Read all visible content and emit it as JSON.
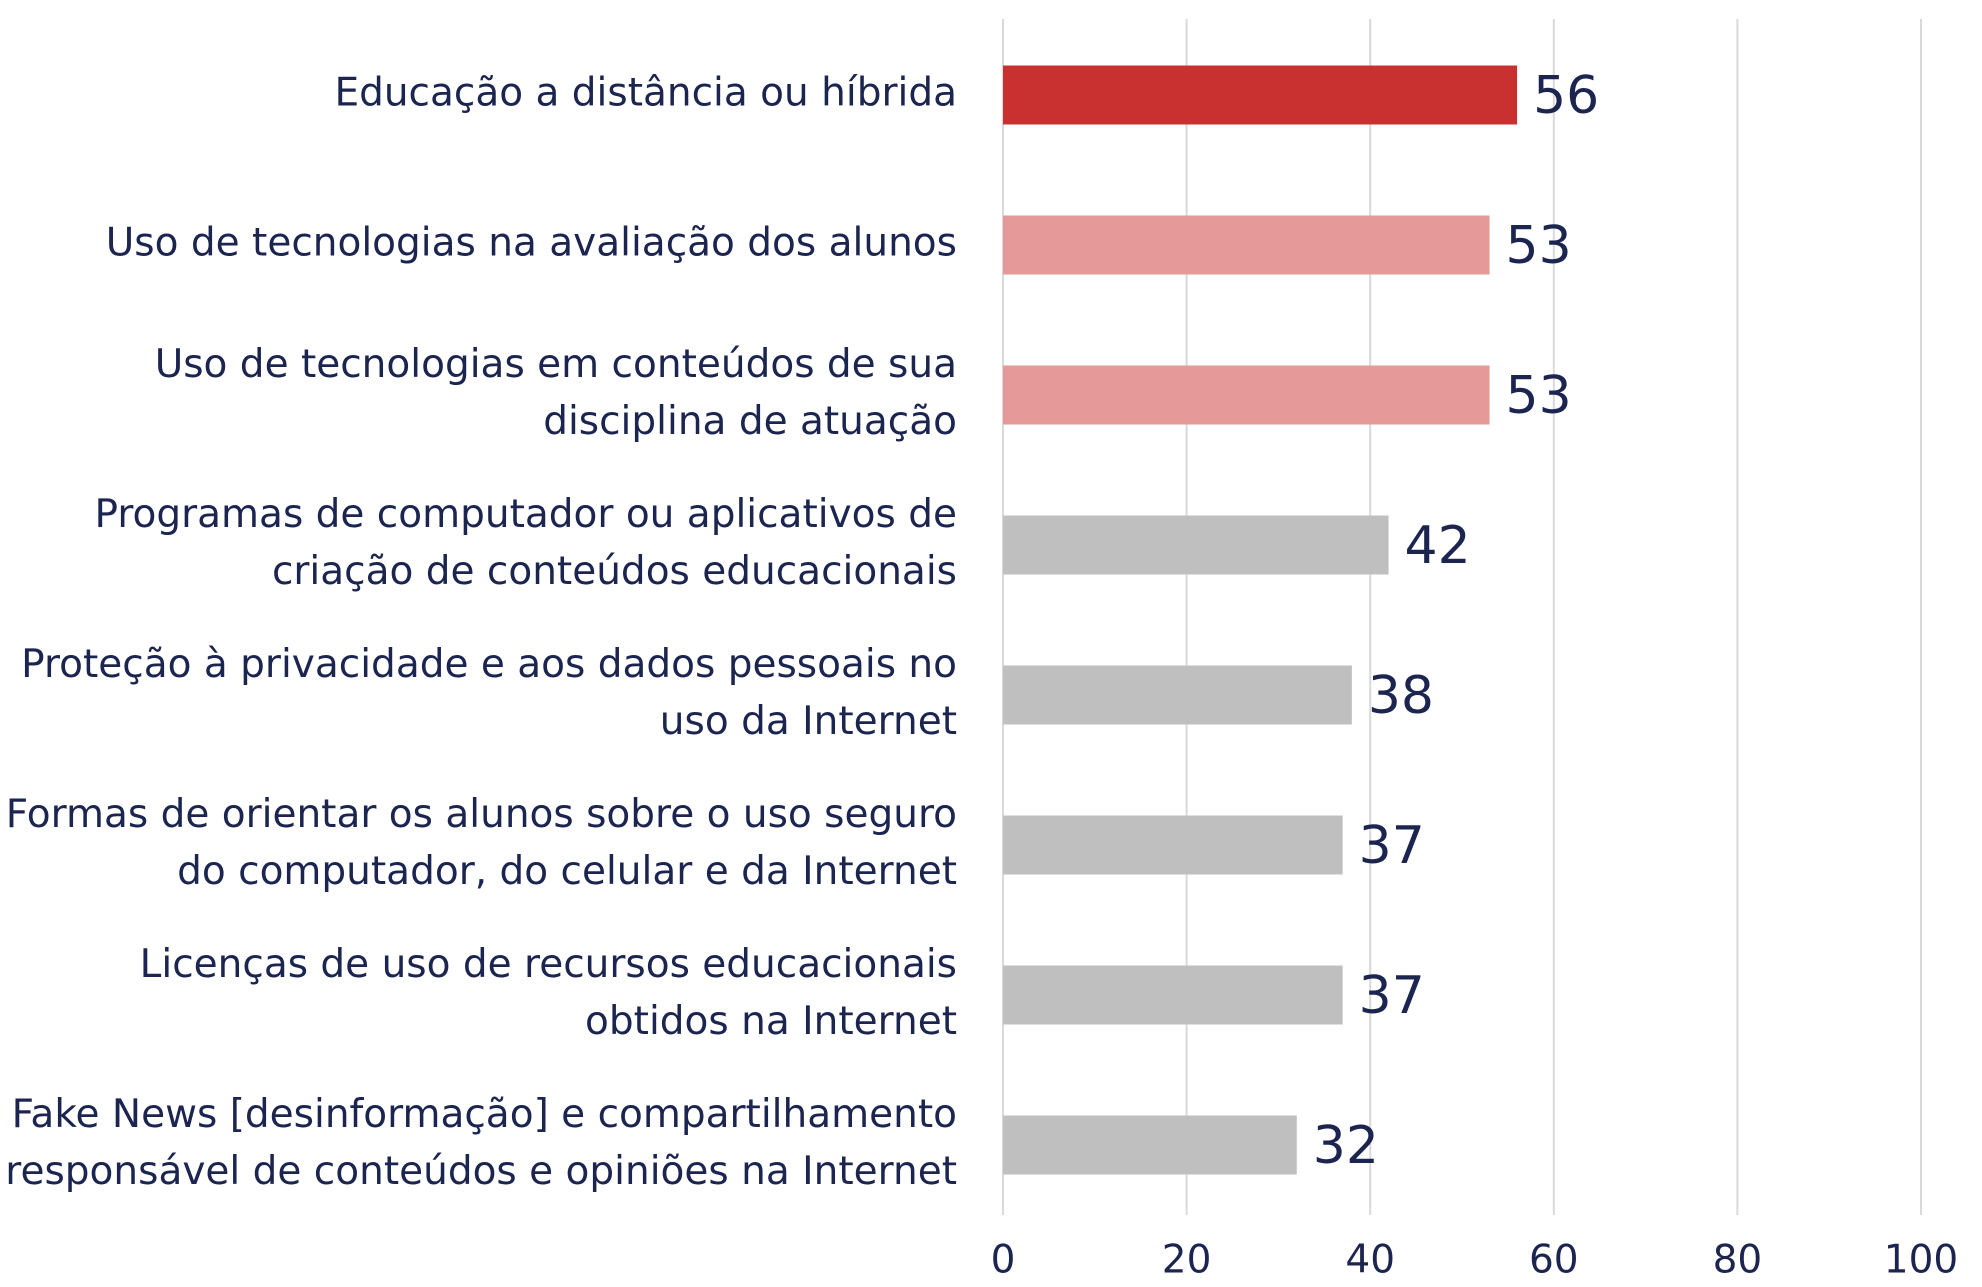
{
  "chart_data": {
    "type": "bar",
    "orientation": "horizontal",
    "categories": [
      [
        "Educação a distância ou híbrida"
      ],
      [
        "Uso de tecnologias na avaliação dos alunos"
      ],
      [
        "Uso de tecnologias em conteúdos de sua",
        "disciplina de atuação"
      ],
      [
        "Programas de computador ou aplicativos de",
        "criação de conteúdos educacionais"
      ],
      [
        "Proteção à privacidade e aos dados pessoais no",
        "uso da Internet"
      ],
      [
        "Formas de orientar os alunos sobre o uso seguro",
        "do computador, do celular e da Internet"
      ],
      [
        "Licenças de uso de recursos educacionais",
        "obtidos na Internet"
      ],
      [
        "Fake News [desinformação] e compartilhamento",
        "responsável de conteúdos e opiniões na Internet"
      ]
    ],
    "values": [
      56,
      53,
      53,
      42,
      38,
      37,
      37,
      32
    ],
    "colors": [
      "#c93030",
      "#e59999",
      "#e59999",
      "#bfbfbf",
      "#bfbfbf",
      "#bfbfbf",
      "#bfbfbf",
      "#bfbfbf"
    ],
    "xlim": [
      0,
      100
    ],
    "xticks": [
      0,
      20,
      40,
      60,
      80,
      100
    ],
    "grid": true
  }
}
